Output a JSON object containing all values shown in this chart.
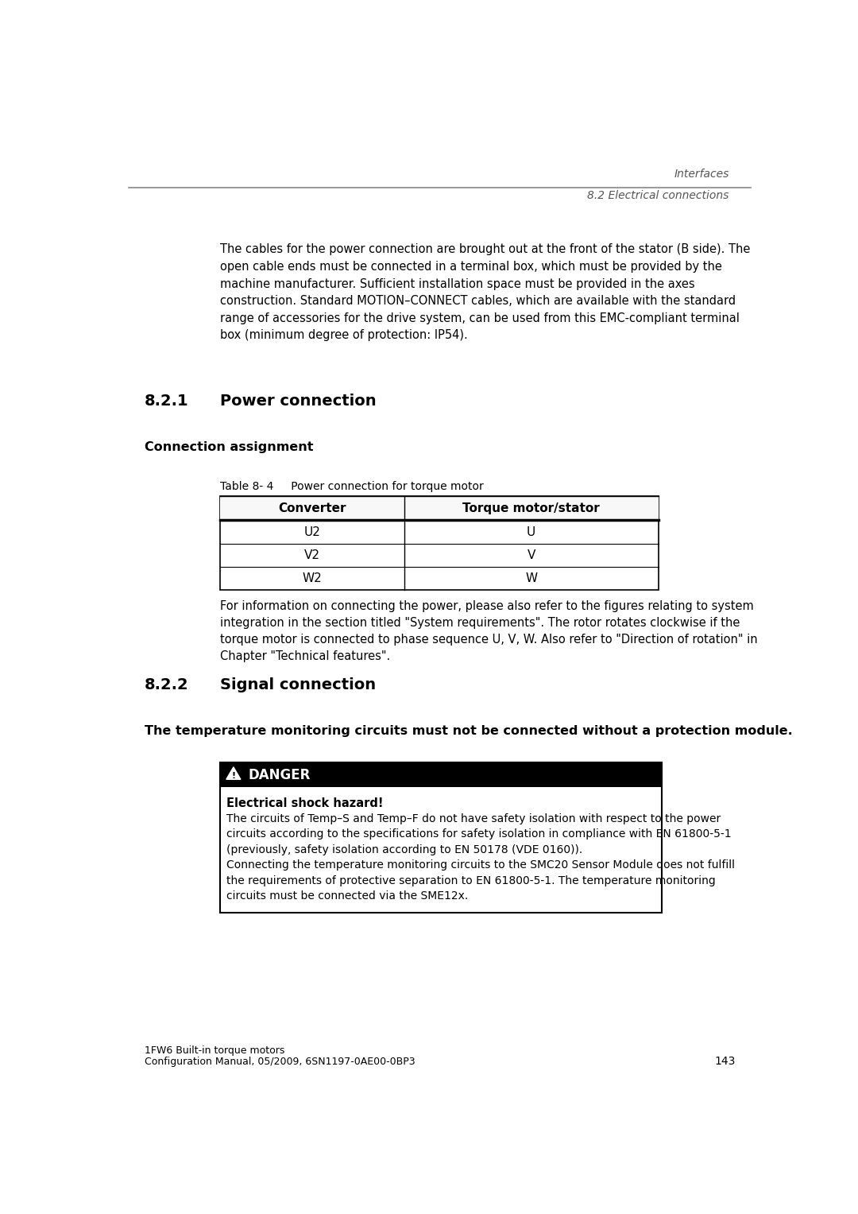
{
  "header_line1": "Interfaces",
  "header_line2": "8.2 Electrical connections",
  "intro_text": "The cables for the power connection are brought out at the front of the stator (B side). The\nopen cable ends must be connected in a terminal box, which must be provided by the\nmachine manufacturer. Sufficient installation space must be provided in the axes\nconstruction. Standard MOTION–CONNECT cables, which are available with the standard\nrange of accessories for the drive system, can be used from this EMC-compliant terminal\nbox (minimum degree of protection: IP54).",
  "section_821": "8.2.1",
  "section_821_title": "Power connection",
  "subsection_conn": "Connection assignment",
  "table_caption": "Table 8- 4     Power connection for torque motor",
  "table_header_col1": "Converter",
  "table_header_col2": "Torque motor/stator",
  "table_rows": [
    [
      "U2",
      "U"
    ],
    [
      "V2",
      "V"
    ],
    [
      "W2",
      "W"
    ]
  ],
  "table_note": "For information on connecting the power, please also refer to the figures relating to system\nintegration in the section titled \"System requirements\". The rotor rotates clockwise if the\ntorque motor is connected to phase sequence U, V, W. Also refer to \"Direction of rotation\" in\nChapter \"Technical features\".",
  "section_822": "8.2.2",
  "section_822_title": "Signal connection",
  "warning_bold": "The temperature monitoring circuits must not be connected without a protection module.",
  "danger_label": "DANGER",
  "danger_subtitle": "Electrical shock hazard!",
  "danger_text1": "The circuits of Temp–S and Temp–F do not have safety isolation with respect to the power\ncircuits according to the specifications for safety isolation in compliance with EN 61800-5-1\n(previously, safety isolation according to EN 50178 (VDE 0160)).",
  "danger_text2": "Connecting the temperature monitoring circuits to the SMC20 Sensor Module does not fulfill\nthe requirements of protective separation to EN 61800-5-1. The temperature monitoring\ncircuits must be connected via the SME12x.",
  "footer_line1": "1FW6 Built-in torque motors",
  "footer_line2": "Configuration Manual, 05/2009, 6SN1197-0AE00-0BP3",
  "footer_page": "143",
  "bg_color": "#ffffff",
  "text_color": "#000000",
  "header_text_color": "#555555",
  "table_border_color": "#000000",
  "danger_bg": "#000000",
  "danger_text_color": "#ffffff",
  "box_border_color": "#000000"
}
